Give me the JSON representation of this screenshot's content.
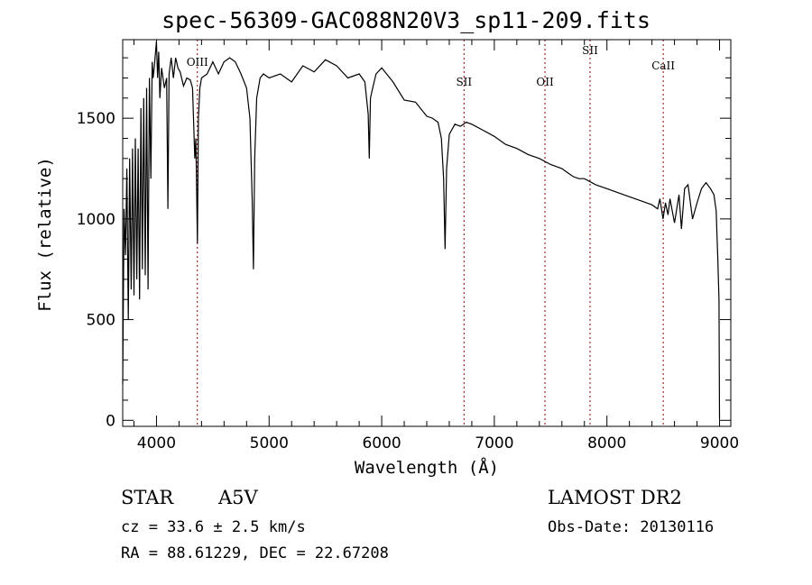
{
  "title": "spec-56309-GAC088N20V3_sp11-209.fits",
  "info": {
    "object_class": "STAR",
    "subclass": "A5V",
    "survey": "LAMOST DR2",
    "cz": "cz = 33.6 ± 2.5 km/s",
    "obs_date": "Obs-Date: 20130116",
    "radec": "RA =  88.61229, DEC =  22.67208"
  },
  "colors": {
    "line": "#000000",
    "marker": "#8b0000",
    "axis": "#000000"
  },
  "chart_data": {
    "type": "line",
    "title": "spec-56309-GAC088N20V3_sp11-209.fits",
    "xlabel": "Wavelength (Å)",
    "ylabel": "Flux (relative)",
    "xlim": [
      3700,
      9100
    ],
    "ylim": [
      -30,
      1890
    ],
    "xticks": [
      4000,
      5000,
      6000,
      7000,
      8000,
      9000
    ],
    "yticks": [
      0,
      500,
      1000,
      1500
    ],
    "grid": false,
    "line_markers": [
      {
        "label": "OIII",
        "x": 4363
      },
      {
        "label": "SII",
        "x": 6731
      },
      {
        "label": "OII",
        "x": 7450
      },
      {
        "label": "SII",
        "x": 7850
      },
      {
        "label": "CaII",
        "x": 8500
      }
    ],
    "series": [
      {
        "x": [
          3700,
          3712,
          3725,
          3737,
          3750,
          3762,
          3775,
          3787,
          3800,
          3812,
          3825,
          3837,
          3850,
          3862,
          3875,
          3887,
          3900,
          3912,
          3925,
          3937,
          3950,
          3962,
          3970,
          3980,
          4000,
          4010,
          4020,
          4030,
          4045,
          4070,
          4090,
          4101,
          4112,
          4130,
          4150,
          4170,
          4190,
          4210,
          4240,
          4270,
          4300,
          4320,
          4340,
          4350,
          4363,
          4372,
          4385,
          4400,
          4450,
          4500,
          4550,
          4600,
          4650,
          4700,
          4750,
          4800,
          4830,
          4850,
          4861,
          4872,
          4890,
          4920,
          4950,
          5000,
          5100,
          5200,
          5300,
          5400,
          5500,
          5600,
          5700,
          5800,
          5850,
          5880,
          5890,
          5900,
          5920,
          5950,
          6000,
          6100,
          6200,
          6300,
          6400,
          6450,
          6500,
          6530,
          6550,
          6563,
          6576,
          6600,
          6650,
          6700,
          6750,
          6800,
          6900,
          7000,
          7100,
          7200,
          7300,
          7400,
          7500,
          7600,
          7650,
          7700,
          7750,
          7800,
          7900,
          8000,
          8100,
          8200,
          8300,
          8400,
          8450,
          8470,
          8498,
          8520,
          8542,
          8560,
          8600,
          8640,
          8662,
          8690,
          8720,
          8760,
          8800,
          8840,
          8880,
          8920,
          8950,
          8970,
          8985,
          8995,
          9000
        ],
        "values": [
          180,
          1050,
          820,
          1250,
          500,
          1300,
          650,
          1350,
          620,
          1400,
          700,
          1350,
          600,
          1550,
          750,
          1600,
          720,
          1650,
          650,
          1700,
          1200,
          1780,
          1700,
          1750,
          1880,
          1700,
          1830,
          1600,
          1750,
          1650,
          1700,
          1050,
          1720,
          1800,
          1700,
          1800,
          1750,
          1730,
          1660,
          1700,
          1690,
          1650,
          1300,
          1400,
          880,
          1500,
          1650,
          1700,
          1720,
          1780,
          1720,
          1780,
          1800,
          1780,
          1720,
          1650,
          1500,
          1100,
          750,
          1300,
          1600,
          1700,
          1720,
          1700,
          1720,
          1680,
          1760,
          1730,
          1790,
          1760,
          1700,
          1720,
          1680,
          1520,
          1300,
          1600,
          1650,
          1720,
          1750,
          1680,
          1590,
          1580,
          1510,
          1500,
          1480,
          1400,
          1200,
          850,
          1250,
          1420,
          1470,
          1460,
          1480,
          1470,
          1440,
          1410,
          1370,
          1350,
          1320,
          1300,
          1270,
          1250,
          1230,
          1210,
          1200,
          1200,
          1170,
          1150,
          1130,
          1110,
          1090,
          1070,
          1050,
          1100,
          1000,
          1080,
          1020,
          1100,
          980,
          1120,
          950,
          1150,
          1170,
          1000,
          1080,
          1150,
          1180,
          1150,
          1120,
          1040,
          800,
          600,
          10
        ]
      }
    ]
  }
}
